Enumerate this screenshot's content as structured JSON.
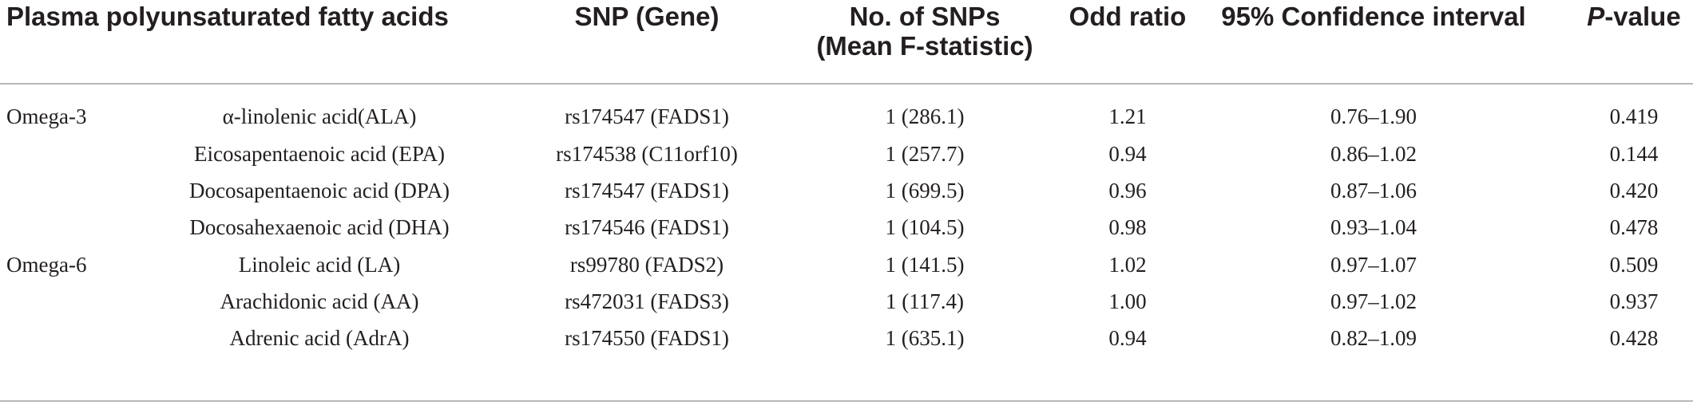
{
  "header": {
    "col_psfa": "Plasma polyunsaturated fatty acids",
    "col_snp": "SNP (Gene)",
    "col_nsnp_line1": "No. of SNPs",
    "col_nsnp_line2": "(Mean F-statistic)",
    "col_or": "Odd ratio",
    "col_ci": "95% Confidence interval",
    "col_p_italic": "P",
    "col_p_rest": "-value"
  },
  "rows": [
    {
      "group": "Omega-3",
      "acid": "α-linolenic acid(ALA)",
      "snp": "rs174547 (FADS1)",
      "nsnp": "1 (286.1)",
      "or": "1.21",
      "ci": "0.76–1.90",
      "p": "0.419"
    },
    {
      "group": "",
      "acid": "Eicosapentaenoic acid (EPA)",
      "snp": "rs174538 (C11orf10)",
      "nsnp": "1 (257.7)",
      "or": "0.94",
      "ci": "0.86–1.02",
      "p": "0.144"
    },
    {
      "group": "",
      "acid": "Docosapentaenoic acid (DPA)",
      "snp": "rs174547 (FADS1)",
      "nsnp": "1 (699.5)",
      "or": "0.96",
      "ci": "0.87–1.06",
      "p": "0.420"
    },
    {
      "group": "",
      "acid": "Docosahexaenoic acid (DHA)",
      "snp": "rs174546 (FADS1)",
      "nsnp": "1 (104.5)",
      "or": "0.98",
      "ci": "0.93–1.04",
      "p": "0.478"
    },
    {
      "group": "Omega-6",
      "acid": "Linoleic acid (LA)",
      "snp": "rs99780 (FADS2)",
      "nsnp": "1 (141.5)",
      "or": "1.02",
      "ci": "0.97–1.07",
      "p": "0.509"
    },
    {
      "group": "",
      "acid": "Arachidonic acid (AA)",
      "snp": "rs472031 (FADS3)",
      "nsnp": "1 (117.4)",
      "or": "1.00",
      "ci": "0.97–1.02",
      "p": "0.937"
    },
    {
      "group": "",
      "acid": "Adrenic acid (AdrA)",
      "snp": "rs174550 (FADS1)",
      "nsnp": "1 (635.1)",
      "or": "0.94",
      "ci": "0.82–1.09",
      "p": "0.428"
    }
  ]
}
